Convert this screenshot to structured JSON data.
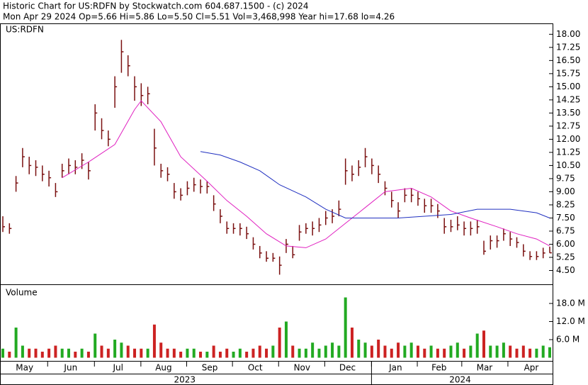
{
  "header": {
    "line1": "Historic Chart for US:RDFN by Stockwatch.com 604.687.1500 - (c) 2024",
    "line2": "Mon Apr 29 2024  Op=5.66  Hi=5.86  Lo=5.50  Cl=5.51  Vol=3,468,998  Year hi=17.68  lo=4.26"
  },
  "chart_data": [
    {
      "type": "ohlc",
      "title": "US:RDFN",
      "color": "#7a1010",
      "close": [
        7.0,
        6.9,
        9.5,
        11.0,
        10.5,
        10.4,
        10.0,
        9.8,
        9.0,
        10.2,
        10.5,
        10.4,
        10.8,
        10.2,
        13.5,
        12.5,
        12.0,
        15.0,
        17.0,
        16.2,
        15.0,
        14.5,
        14.6,
        11.5,
        10.2,
        10.0,
        9.0,
        8.8,
        9.2,
        9.4,
        9.3,
        9.3,
        8.3,
        7.6,
        6.9,
        6.9,
        6.9,
        6.6,
        6.0,
        5.5,
        5.2,
        5.2,
        4.8,
        6.0,
        5.4,
        6.7,
        6.9,
        6.9,
        7.1,
        7.5,
        7.6,
        8.0,
        10.2,
        10.0,
        10.4,
        11.0,
        10.5,
        10.0,
        9.2,
        8.5,
        7.9,
        8.8,
        8.8,
        8.6,
        8.2,
        8.2,
        7.9,
        7.0,
        7.0,
        7.1,
        6.9,
        6.9,
        7.0,
        5.6,
        6.2,
        6.2,
        6.6,
        6.3,
        6.1,
        5.6,
        5.3,
        5.3,
        5.5,
        5.51
      ],
      "high": [
        7.6,
        7.2,
        9.9,
        11.5,
        11.0,
        10.8,
        10.5,
        10.2,
        9.5,
        10.6,
        10.9,
        10.8,
        11.2,
        10.7,
        14.0,
        13.2,
        12.5,
        15.6,
        17.68,
        16.8,
        15.6,
        15.2,
        15.0,
        12.6,
        10.6,
        10.4,
        9.5,
        9.2,
        9.6,
        9.8,
        9.7,
        9.6,
        8.8,
        8.0,
        7.3,
        7.2,
        7.2,
        7.0,
        6.4,
        5.9,
        5.6,
        5.5,
        5.3,
        6.3,
        5.9,
        7.1,
        7.2,
        7.3,
        7.5,
        7.9,
        8.0,
        8.5,
        10.9,
        10.5,
        10.8,
        11.5,
        10.9,
        10.5,
        9.6,
        9.0,
        8.4,
        9.2,
        9.2,
        9.0,
        8.6,
        8.6,
        8.3,
        7.5,
        7.4,
        7.6,
        7.3,
        7.3,
        7.4,
        6.2,
        6.5,
        6.5,
        6.9,
        6.7,
        6.4,
        6.0,
        5.6,
        5.6,
        5.8,
        5.86
      ],
      "low": [
        6.7,
        6.6,
        9.0,
        10.4,
        10.0,
        9.9,
        9.6,
        9.3,
        8.7,
        9.8,
        10.0,
        10.0,
        10.3,
        9.7,
        12.5,
        12.0,
        11.6,
        13.8,
        15.8,
        15.6,
        14.2,
        13.9,
        14.0,
        10.5,
        9.8,
        9.6,
        8.6,
        8.5,
        8.8,
        9.0,
        8.9,
        8.9,
        7.9,
        7.2,
        6.6,
        6.6,
        6.5,
        6.3,
        5.7,
        5.2,
        5.0,
        5.0,
        4.26,
        5.5,
        5.2,
        6.2,
        6.6,
        6.5,
        6.7,
        7.1,
        7.2,
        7.6,
        9.4,
        9.6,
        9.9,
        10.4,
        10.0,
        9.5,
        8.8,
        8.1,
        7.5,
        8.4,
        8.4,
        8.2,
        7.8,
        7.8,
        7.5,
        6.6,
        6.7,
        6.8,
        6.5,
        6.5,
        6.6,
        5.4,
        5.7,
        5.8,
        6.2,
        5.9,
        5.8,
        5.3,
        5.1,
        5.1,
        5.2,
        5.5
      ],
      "moving_averages": [
        {
          "color": "#e020c0",
          "x": [
            9,
            13,
            17,
            20,
            21,
            24,
            27,
            31,
            34,
            37,
            40,
            43,
            46,
            49,
            52,
            55,
            58,
            62,
            65,
            68,
            71,
            75,
            78,
            81,
            83
          ],
          "values": [
            9.8,
            10.7,
            11.7,
            13.7,
            14.2,
            13.0,
            11.0,
            9.6,
            8.5,
            7.6,
            6.6,
            5.9,
            5.8,
            6.3,
            7.2,
            8.1,
            9.0,
            9.2,
            8.7,
            7.9,
            7.5,
            7.0,
            6.6,
            6.3,
            5.9
          ]
        },
        {
          "color": "#2030c0",
          "x": [
            30,
            33,
            36,
            39,
            42,
            46,
            49,
            52,
            55,
            60,
            64,
            68,
            72,
            77,
            81,
            83
          ],
          "values": [
            11.3,
            11.1,
            10.7,
            10.2,
            9.4,
            8.7,
            8.0,
            7.5,
            7.5,
            7.5,
            7.6,
            7.7,
            8.0,
            8.0,
            7.8,
            7.5
          ]
        }
      ],
      "ylim": [
        3.75,
        18.5
      ],
      "yticks": [
        {
          "value": 18,
          "label": "18.00"
        },
        {
          "value": 17.25,
          "label": "17.25"
        },
        {
          "value": 16.5,
          "label": "16.50"
        },
        {
          "value": 15.75,
          "label": "15.75"
        },
        {
          "value": 15,
          "label": "15.00"
        },
        {
          "value": 14.25,
          "label": "14.25"
        },
        {
          "value": 13.5,
          "label": "13.50"
        },
        {
          "value": 12.75,
          "label": "12.75"
        },
        {
          "value": 12,
          "label": "12.00"
        },
        {
          "value": 11.25,
          "label": "11.25"
        },
        {
          "value": 10.5,
          "label": "10.50"
        },
        {
          "value": 9.75,
          "label": "9.75"
        },
        {
          "value": 9,
          "label": "9.00"
        },
        {
          "value": 8.25,
          "label": "8.25"
        },
        {
          "value": 7.5,
          "label": "7.50"
        },
        {
          "value": 6.75,
          "label": "6.75"
        },
        {
          "value": 6,
          "label": "6.00"
        },
        {
          "value": 5.25,
          "label": "5.25"
        },
        {
          "value": 4.5,
          "label": "4.50"
        }
      ]
    },
    {
      "type": "bar",
      "title": "Volume",
      "up_color": "#22aa22",
      "down_color": "#cc2222",
      "values": [
        3,
        2,
        10,
        4,
        3,
        3,
        2,
        3,
        4,
        3,
        3,
        2,
        3,
        2,
        8,
        4,
        3,
        6,
        5,
        4,
        3,
        3,
        3,
        11,
        5,
        3,
        3,
        2,
        3,
        3,
        2,
        2,
        4,
        2,
        3,
        2,
        3,
        2,
        3,
        4,
        3,
        4,
        10,
        12,
        4,
        3,
        3,
        5,
        3,
        4,
        5,
        4,
        20,
        10,
        6,
        5,
        4,
        6,
        4,
        3,
        5,
        4,
        5,
        4,
        3,
        4,
        3,
        3,
        4,
        5,
        3,
        4,
        8,
        9,
        4,
        4,
        5,
        4,
        3,
        4,
        3,
        3,
        4,
        3.47
      ],
      "ylim": [
        0,
        24
      ],
      "yticks": [
        {
          "value": 18,
          "label": "18.0 M"
        },
        {
          "value": 12,
          "label": "12.0 M"
        },
        {
          "value": 6,
          "label": "6.0 M"
        }
      ],
      "x_labels": [
        {
          "label": "May",
          "index": 3.3
        },
        {
          "label": "Jun",
          "index": 10.3
        },
        {
          "label": "Jul",
          "index": 17.5
        },
        {
          "label": "Aug",
          "index": 24.4
        },
        {
          "label": "Sep",
          "index": 31.4
        },
        {
          "label": "Oct",
          "index": 38.3
        },
        {
          "label": "Nov",
          "index": 45.4
        },
        {
          "label": "Dec",
          "index": 52.3
        },
        {
          "label": "Jan",
          "index": 59.6
        },
        {
          "label": "Feb",
          "index": 66.2
        },
        {
          "label": "Mar",
          "index": 73.1
        },
        {
          "label": "Apr",
          "index": 80.2
        }
      ],
      "year_labels": [
        {
          "label": "2023",
          "index": 27.6
        },
        {
          "label": "2024",
          "index": 69.4
        }
      ]
    }
  ]
}
